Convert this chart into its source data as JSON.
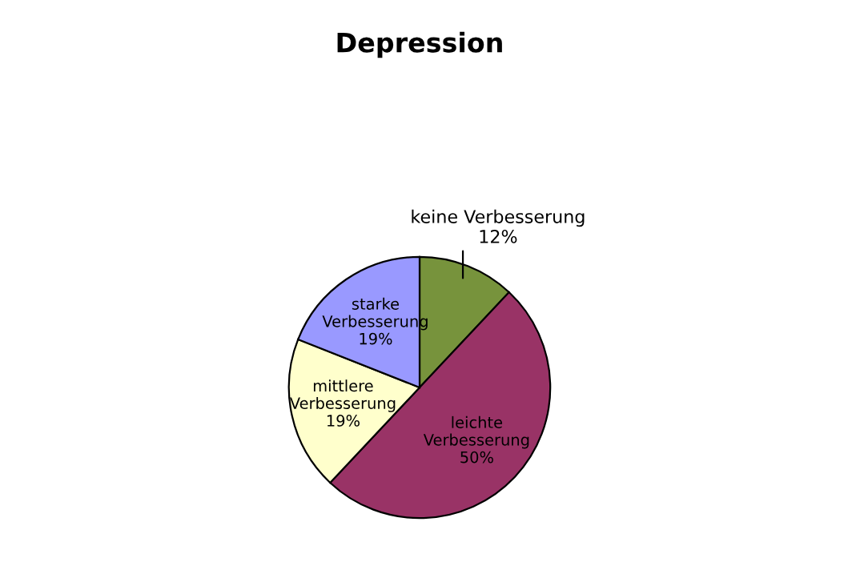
{
  "chart_data": {
    "type": "pie",
    "title": "Depression",
    "categories": [
      "keine Verbesserung",
      "leichte Verbesserung",
      "mittlere Verbesserung",
      "starke Verbesserung"
    ],
    "values": [
      12,
      50,
      19,
      19
    ],
    "value_labels": [
      "12%",
      "50%",
      "19%",
      "19%"
    ],
    "colors": [
      "#77933c",
      "#993366",
      "#ffffcc",
      "#9999ff"
    ],
    "legend": false
  }
}
